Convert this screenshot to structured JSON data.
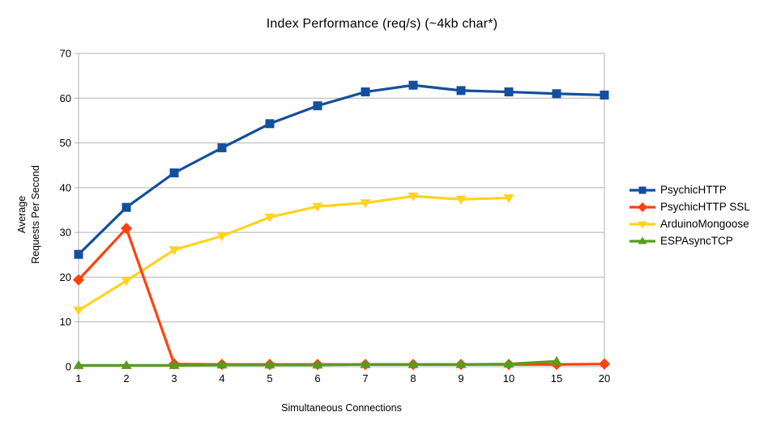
{
  "chart_data": {
    "type": "line",
    "title": "Index Performance (req/s) (~4kb char*)",
    "xlabel": "Simultaneous Connections",
    "ylabel_lines": [
      "Average",
      "Requests Per Second"
    ],
    "categories": [
      "1",
      "2",
      "3",
      "4",
      "5",
      "6",
      "7",
      "8",
      "9",
      "10",
      "15",
      "20"
    ],
    "ylim": [
      0,
      70
    ],
    "yticks": [
      0,
      10,
      20,
      30,
      40,
      50,
      60,
      70
    ],
    "grid": "horizontal",
    "legend_position": "right",
    "series": [
      {
        "name": "PsychicHTTP",
        "color": "#134F9C",
        "marker": "square",
        "values": [
          25.1,
          35.6,
          43.3,
          48.9,
          54.3,
          58.3,
          61.4,
          62.9,
          61.7,
          61.4,
          61.0,
          60.7
        ]
      },
      {
        "name": "PsychicHTTP SSL",
        "color": "#FF420E",
        "marker": "diamond",
        "values": [
          19.4,
          30.9,
          0.6,
          0.5,
          0.5,
          0.5,
          0.5,
          0.5,
          0.5,
          0.5,
          0.5,
          0.6
        ]
      },
      {
        "name": "ArduinoMongoose",
        "color": "#FFD320",
        "marker": "triangle-down",
        "values": [
          12.6,
          19.2,
          26.1,
          29.2,
          33.4,
          35.8,
          36.6,
          38.1,
          37.4,
          37.7,
          null,
          null
        ]
      },
      {
        "name": "ESPAsyncTCP",
        "color": "#579D1C",
        "marker": "triangle-up",
        "values": [
          0.3,
          0.3,
          0.3,
          0.4,
          0.4,
          0.4,
          0.5,
          0.5,
          0.5,
          0.6,
          1.2,
          null
        ]
      }
    ]
  },
  "colors": {
    "background": "#FFFFFF",
    "gridline": "#B3B3B3",
    "axis": "#B3B3B3",
    "text": "#000000"
  }
}
